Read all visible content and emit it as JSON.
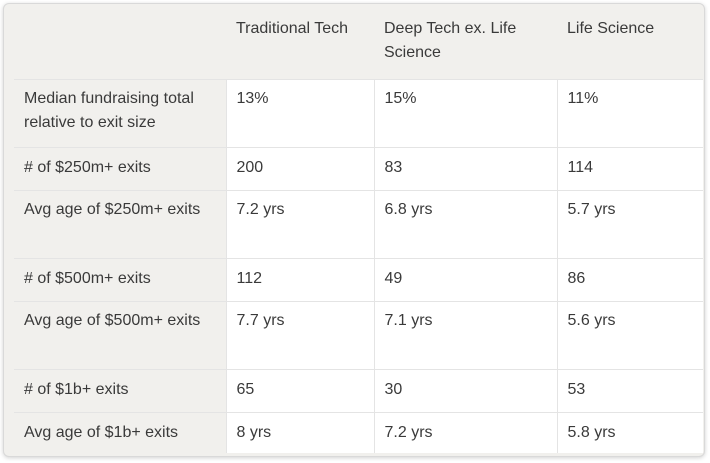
{
  "table": {
    "headers": [
      "",
      "Traditional Tech",
      "Deep Tech ex. Life Science",
      "Life Science"
    ],
    "rows": [
      [
        "Median fundraising total relative to exit size",
        "13%",
        "15%",
        "11%"
      ],
      [
        "# of $250m+ exits",
        "200",
        "83",
        "114"
      ],
      [
        "Avg age of $250m+ exits",
        "7.2 yrs",
        "6.8 yrs",
        "5.7 yrs"
      ],
      [
        "# of $500m+ exits",
        "112",
        "49",
        "86"
      ],
      [
        "Avg age of $500m+ exits",
        "7.7 yrs",
        "7.1 yrs",
        "5.6 yrs"
      ],
      [
        "# of $1b+ exits",
        "65",
        "30",
        "53"
      ],
      [
        "Avg age of $1b+ exits",
        "8 yrs",
        "7.2 yrs",
        "5.8 yrs"
      ]
    ]
  }
}
